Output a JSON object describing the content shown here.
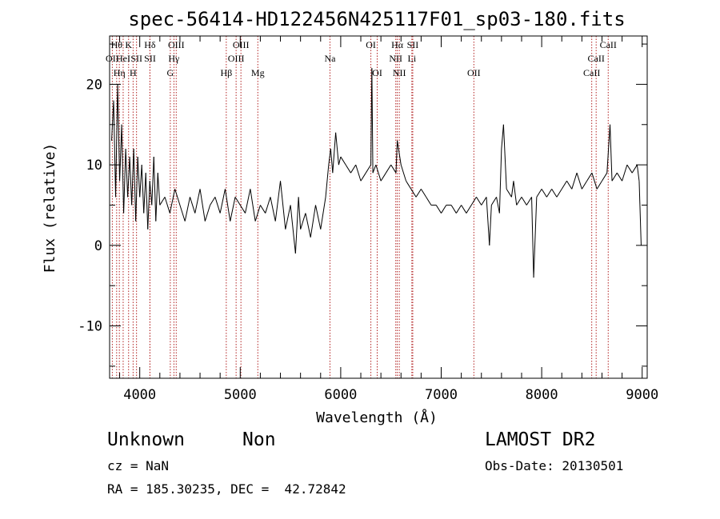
{
  "chart_data": {
    "type": "line",
    "title": "spec-56414-HD122456N425117F01_sp03-180.fits",
    "xlabel": "Wavelength (Å)",
    "ylabel": "Flux (relative)",
    "xlim": [
      3700,
      9050
    ],
    "ylim": [
      -16.5,
      26
    ],
    "xticks": [
      4000,
      5000,
      6000,
      7000,
      8000,
      9000
    ],
    "yticks": [
      -10,
      0,
      10,
      20
    ],
    "grid": false,
    "line_color": "#000000",
    "marker_color": "#b22222",
    "series": [
      {
        "x": [
          3720,
          3740,
          3760,
          3780,
          3800,
          3820,
          3840,
          3860,
          3880,
          3900,
          3920,
          3940,
          3960,
          3980,
          4000,
          4020,
          4040,
          4060,
          4080,
          4100,
          4120,
          4140,
          4160,
          4180,
          4200,
          4250,
          4300,
          4350,
          4400,
          4450,
          4500,
          4550,
          4600,
          4650,
          4700,
          4750,
          4800,
          4850,
          4900,
          4950,
          5000,
          5050,
          5100,
          5150,
          5200,
          5250,
          5300,
          5350,
          5400,
          5450,
          5500,
          5550,
          5580,
          5600,
          5650,
          5700,
          5750,
          5800,
          5850,
          5880,
          5900,
          5920,
          5950,
          5980,
          6000,
          6050,
          6100,
          6150,
          6200,
          6250,
          6300,
          6310,
          6320,
          6350,
          6400,
          6450,
          6500,
          6550,
          6563,
          6600,
          6650,
          6700,
          6750,
          6800,
          6850,
          6900,
          6950,
          7000,
          7050,
          7100,
          7150,
          7200,
          7250,
          7300,
          7350,
          7400,
          7450,
          7480,
          7500,
          7550,
          7580,
          7600,
          7620,
          7650,
          7700,
          7720,
          7750,
          7800,
          7850,
          7900,
          7920,
          7950,
          8000,
          8050,
          8100,
          8150,
          8200,
          8250,
          8300,
          8350,
          8400,
          8450,
          8500,
          8550,
          8600,
          8650,
          8680,
          8700,
          8750,
          8800,
          8850,
          8900,
          8950,
          8970,
          8990
        ],
        "y": [
          13,
          18,
          6,
          20,
          8,
          15,
          4,
          12,
          6,
          11,
          5,
          12,
          3,
          11,
          6,
          10,
          4,
          9,
          2,
          8,
          5,
          11,
          3,
          9,
          5,
          6,
          4,
          7,
          5,
          3,
          6,
          4,
          7,
          3,
          5,
          6,
          4,
          7,
          3,
          6,
          5,
          4,
          7,
          3,
          5,
          4,
          6,
          3,
          8,
          2,
          5,
          -1,
          6,
          2,
          4,
          1,
          5,
          2,
          6,
          10,
          12,
          9,
          14,
          10,
          11,
          10,
          9,
          10,
          8,
          9,
          10,
          22,
          9,
          10,
          8,
          9,
          10,
          9,
          13,
          10,
          8,
          7,
          6,
          7,
          6,
          5,
          5,
          4,
          5,
          5,
          4,
          5,
          4,
          5,
          6,
          5,
          6,
          0,
          5,
          6,
          4,
          12,
          15,
          7,
          6,
          8,
          5,
          6,
          5,
          6,
          -4,
          6,
          7,
          6,
          7,
          6,
          7,
          8,
          7,
          9,
          7,
          8,
          9,
          7,
          8,
          9,
          15,
          8,
          9,
          8,
          10,
          9,
          10,
          8,
          0
        ]
      }
    ],
    "line_markers": [
      {
        "wl": 3727,
        "label": "OII",
        "row": 2
      },
      {
        "wl": 3770,
        "label": "Hθ",
        "row": 1
      },
      {
        "wl": 3797,
        "label": "Hη",
        "row": 3
      },
      {
        "wl": 3835,
        "label": "HeI",
        "row": 2
      },
      {
        "wl": 3889,
        "label": "K",
        "row": 1
      },
      {
        "wl": 3934,
        "label": "H",
        "row": 3
      },
      {
        "wl": 3968,
        "label": "SII",
        "row": 2
      },
      {
        "wl": 4101,
        "label": "Hδ",
        "row": 1
      },
      {
        "wl": 4102,
        "label": "SII",
        "row": 2
      },
      {
        "wl": 4304,
        "label": "G",
        "row": 3
      },
      {
        "wl": 4340,
        "label": "Hγ",
        "row": 2
      },
      {
        "wl": 4363,
        "label": "OIII",
        "row": 1
      },
      {
        "wl": 4861,
        "label": "Hβ",
        "row": 3
      },
      {
        "wl": 4959,
        "label": "OIII",
        "row": 2
      },
      {
        "wl": 5007,
        "label": "OIII",
        "row": 1
      },
      {
        "wl": 5175,
        "label": "Mg",
        "row": 3
      },
      {
        "wl": 5893,
        "label": "Na",
        "row": 2
      },
      {
        "wl": 6300,
        "label": "OI",
        "row": 1
      },
      {
        "wl": 6363,
        "label": "OI",
        "row": 3
      },
      {
        "wl": 6548,
        "label": "NII",
        "row": 2
      },
      {
        "wl": 6563,
        "label": "Hα",
        "row": 1
      },
      {
        "wl": 6583,
        "label": "NII",
        "row": 3
      },
      {
        "wl": 6708,
        "label": "Li",
        "row": 2
      },
      {
        "wl": 6717,
        "label": "SII",
        "row": 1
      },
      {
        "wl": 7325,
        "label": "OII",
        "row": 3
      },
      {
        "wl": 8498,
        "label": "CaII",
        "row": 3
      },
      {
        "wl": 8542,
        "label": "CaII",
        "row": 2
      },
      {
        "wl": 8662,
        "label": "CaII",
        "row": 1
      }
    ]
  },
  "footer": {
    "class_label": "Unknown",
    "subclass_label": "Non",
    "survey": "LAMOST DR2",
    "cz": "cz = NaN",
    "obs_date": "Obs-Date: 20130501",
    "radec": "RA = 185.30235, DEC =  42.72842"
  }
}
